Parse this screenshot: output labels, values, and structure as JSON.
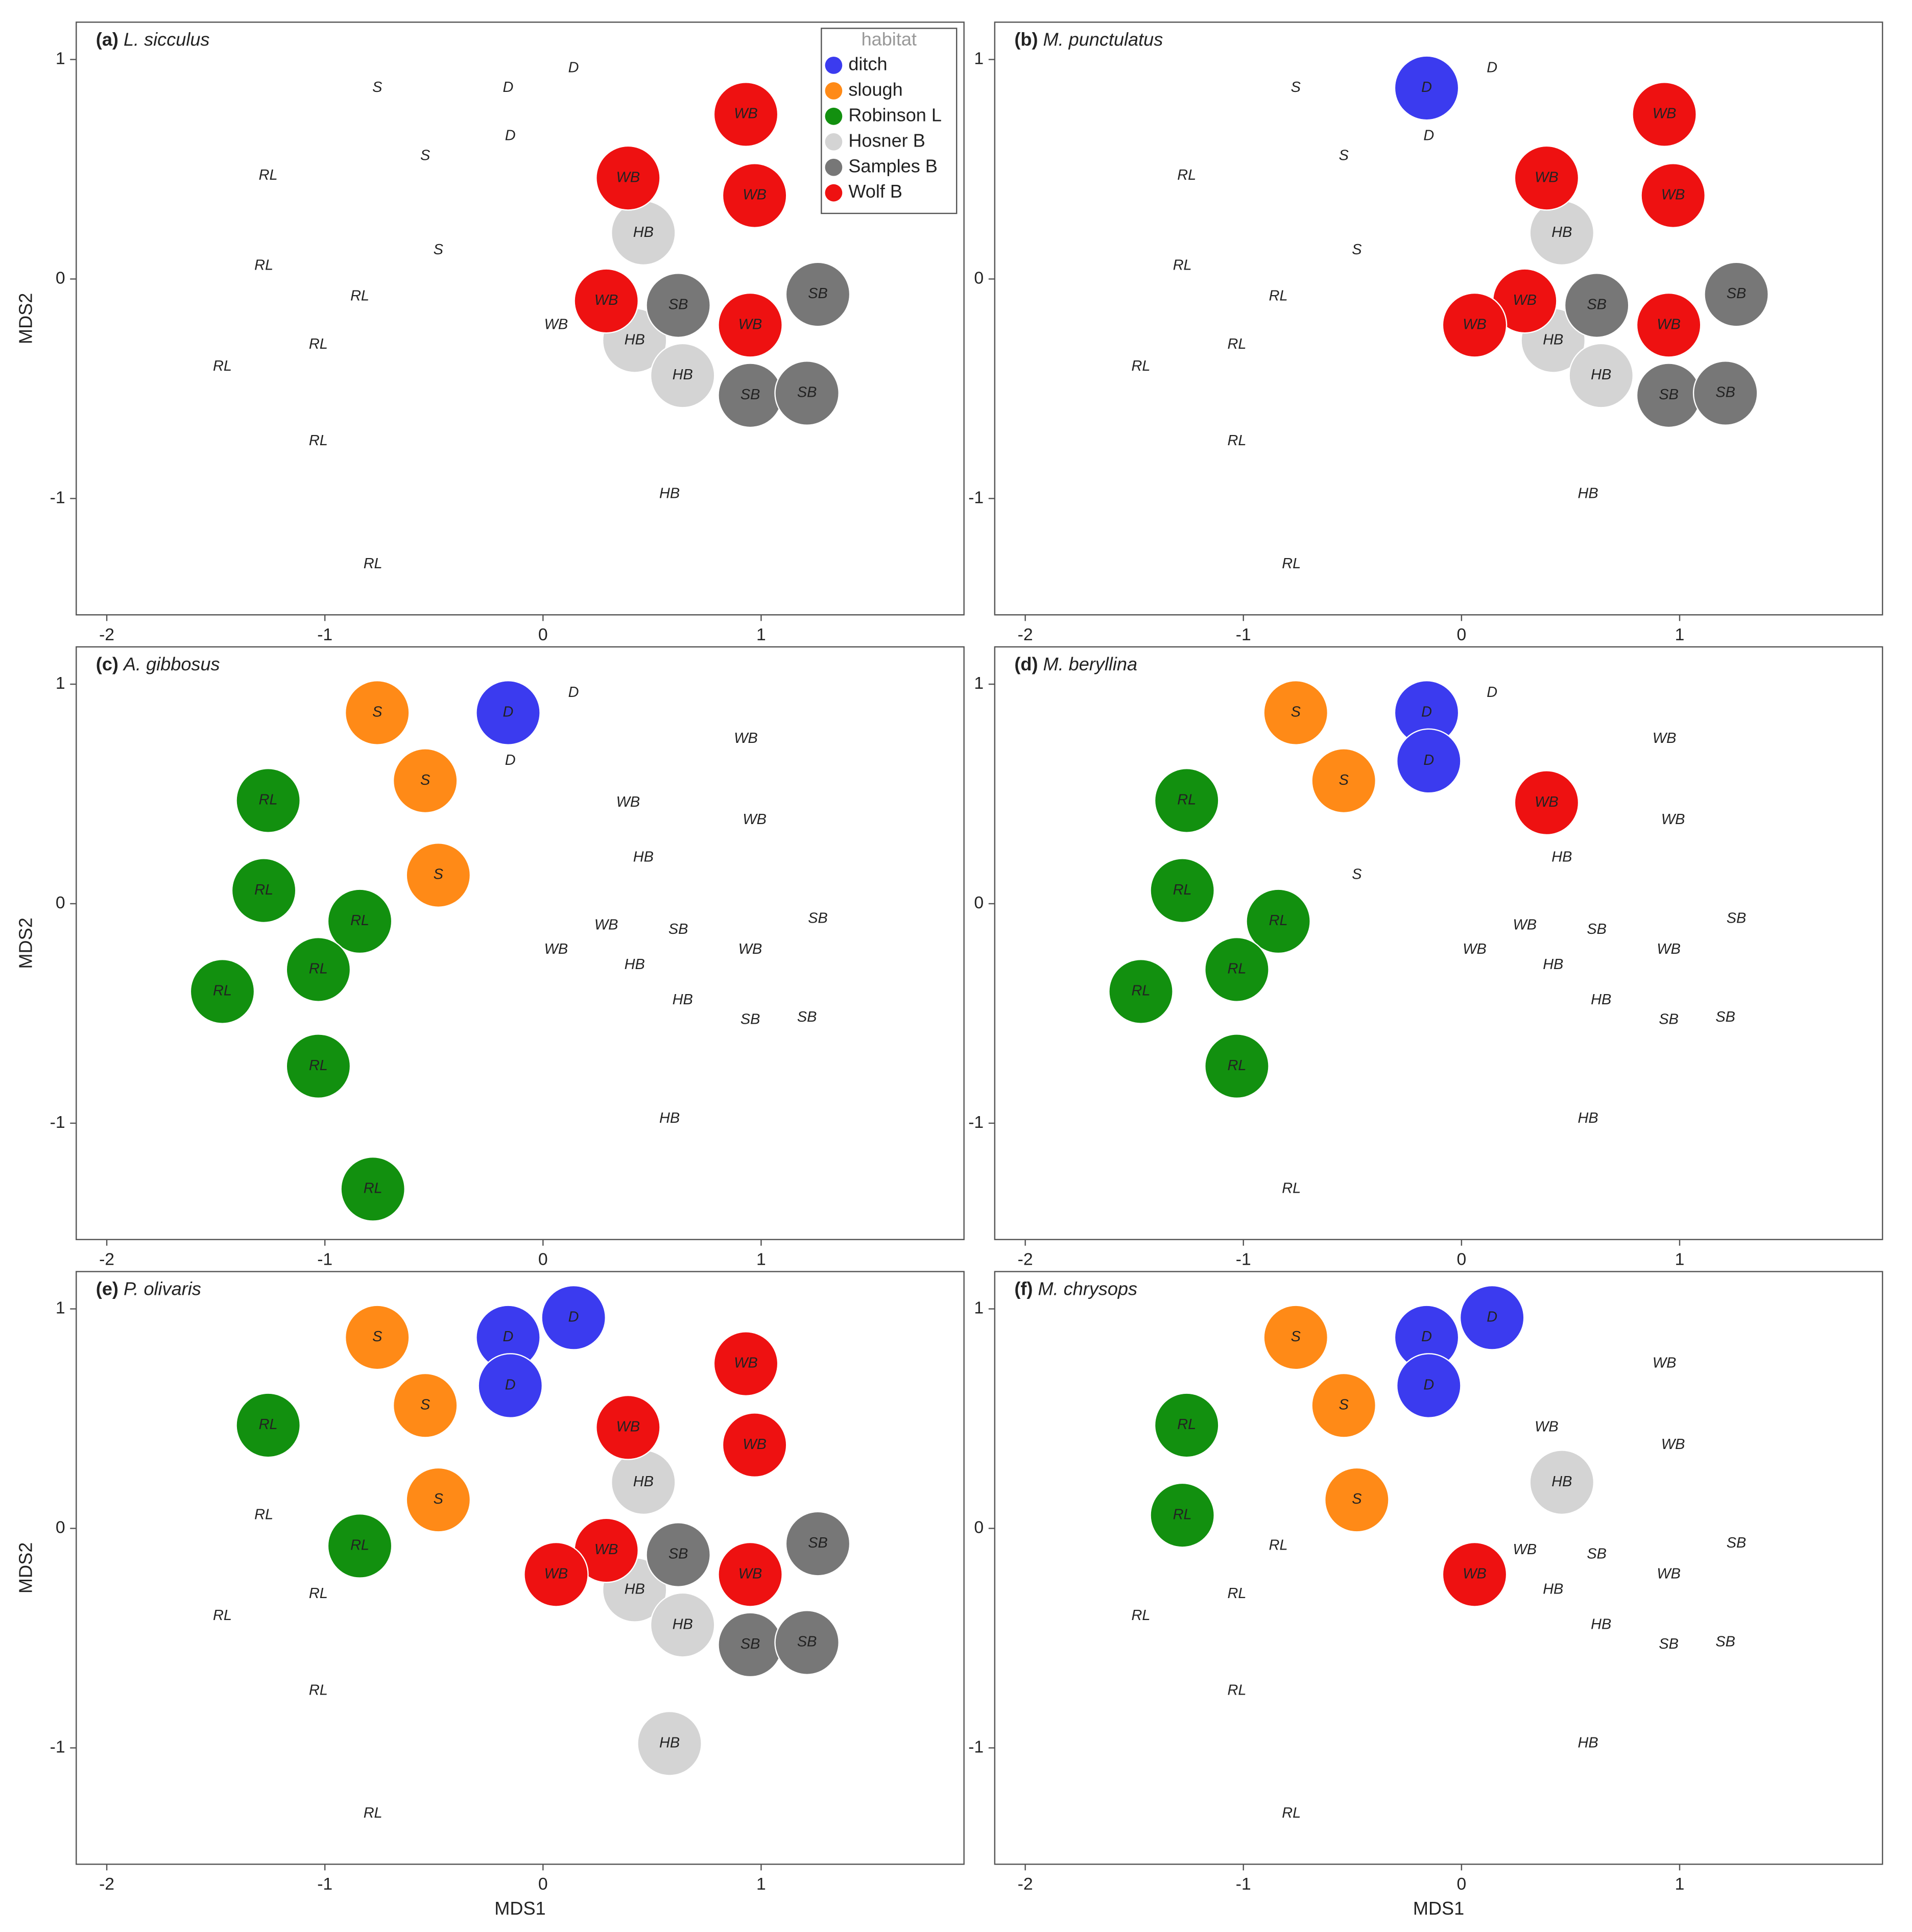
{
  "chart_data": [
    {
      "type": "scatter",
      "panel": "(a)",
      "title": "L. sicculus",
      "ylabel": "MDS2",
      "xlim": [
        -2.14,
        1.93
      ],
      "ylim": [
        -1.53,
        1.17
      ],
      "xticks": [
        -2,
        -1,
        0,
        1
      ],
      "yticks": [
        -1,
        0,
        1
      ],
      "legend": {
        "title": "habitat",
        "position": "upper right"
      },
      "series": [
        {
          "name": "ditch",
          "label": "D",
          "color": "#3b3bef",
          "x": [
            -0.16,
            0.14,
            -0.15
          ],
          "y": [
            0.87,
            0.96,
            0.65
          ],
          "filled": [
            false,
            false,
            false
          ]
        },
        {
          "name": "slough",
          "label": "S",
          "color": "#ff8a17",
          "x": [
            -0.76,
            -0.54,
            -0.48
          ],
          "y": [
            0.87,
            0.56,
            0.13
          ],
          "filled": [
            false,
            false,
            false
          ]
        },
        {
          "name": "Robinson L",
          "label": "RL",
          "color": "#12900f",
          "x": [
            -1.26,
            -1.28,
            -0.84,
            -1.03,
            -1.47,
            -1.03,
            -0.78
          ],
          "y": [
            0.47,
            0.06,
            -0.08,
            -0.3,
            -0.4,
            -0.74,
            -1.3
          ],
          "filled": [
            false,
            false,
            false,
            false,
            false,
            false,
            false
          ]
        },
        {
          "name": "Hosner B",
          "label": "HB",
          "color": "#d4d4d4",
          "x": [
            0.46,
            0.42,
            0.64,
            0.58
          ],
          "y": [
            0.21,
            -0.28,
            -0.44,
            -0.98
          ],
          "filled": [
            true,
            true,
            true,
            false
          ]
        },
        {
          "name": "Samples B",
          "label": "SB",
          "color": "#777777",
          "x": [
            0.62,
            1.26,
            0.95,
            1.21
          ],
          "y": [
            -0.12,
            -0.07,
            -0.53,
            -0.52
          ],
          "filled": [
            true,
            true,
            true,
            true
          ]
        },
        {
          "name": "Wolf B",
          "label": "WB",
          "color": "#ee1111",
          "x": [
            0.93,
            0.39,
            0.97,
            0.29,
            0.95,
            0.06
          ],
          "y": [
            0.75,
            0.46,
            0.38,
            -0.1,
            -0.21,
            -0.21
          ],
          "filled": [
            true,
            true,
            true,
            true,
            true,
            false
          ]
        }
      ]
    },
    {
      "type": "scatter",
      "panel": "(b)",
      "title": "M. punctulatus",
      "xlim": [
        -2.14,
        1.93
      ],
      "ylim": [
        -1.53,
        1.17
      ],
      "xticks": [
        -2,
        -1,
        0,
        1
      ],
      "yticks": [
        -1,
        0,
        1
      ],
      "series": [
        {
          "label": "D",
          "color": "#3b3bef",
          "x": [
            -0.16,
            0.14,
            -0.15
          ],
          "y": [
            0.87,
            0.96,
            0.65
          ],
          "filled": [
            true,
            false,
            false
          ]
        },
        {
          "label": "S",
          "color": "#ff8a17",
          "x": [
            -0.76,
            -0.54,
            -0.48
          ],
          "y": [
            0.87,
            0.56,
            0.13
          ],
          "filled": [
            false,
            false,
            false
          ]
        },
        {
          "label": "RL",
          "color": "#12900f",
          "x": [
            -1.26,
            -1.28,
            -0.84,
            -1.03,
            -1.47,
            -1.03,
            -0.78
          ],
          "y": [
            0.47,
            0.06,
            -0.08,
            -0.3,
            -0.4,
            -0.74,
            -1.3
          ],
          "filled": [
            false,
            false,
            false,
            false,
            false,
            false,
            false
          ]
        },
        {
          "label": "HB",
          "color": "#d4d4d4",
          "x": [
            0.46,
            0.42,
            0.64,
            0.58
          ],
          "y": [
            0.21,
            -0.28,
            -0.44,
            -0.98
          ],
          "filled": [
            true,
            true,
            true,
            false
          ]
        },
        {
          "label": "SB",
          "color": "#777777",
          "x": [
            0.62,
            1.26,
            0.95,
            1.21
          ],
          "y": [
            -0.12,
            -0.07,
            -0.53,
            -0.52
          ],
          "filled": [
            true,
            true,
            true,
            true
          ]
        },
        {
          "label": "WB",
          "color": "#ee1111",
          "x": [
            0.93,
            0.39,
            0.97,
            0.29,
            0.95,
            0.06
          ],
          "y": [
            0.75,
            0.46,
            0.38,
            -0.1,
            -0.21,
            -0.21
          ],
          "filled": [
            true,
            true,
            true,
            true,
            true,
            true
          ]
        }
      ]
    },
    {
      "type": "scatter",
      "panel": "(c)",
      "title": "A. gibbosus",
      "ylabel": "MDS2",
      "xlim": [
        -2.14,
        1.93
      ],
      "ylim": [
        -1.53,
        1.17
      ],
      "xticks": [
        -2,
        -1,
        0,
        1
      ],
      "yticks": [
        -1,
        0,
        1
      ],
      "series": [
        {
          "label": "D",
          "color": "#3b3bef",
          "x": [
            -0.16,
            0.14,
            -0.15
          ],
          "y": [
            0.87,
            0.96,
            0.65
          ],
          "filled": [
            true,
            false,
            false
          ]
        },
        {
          "label": "S",
          "color": "#ff8a17",
          "x": [
            -0.76,
            -0.54,
            -0.48
          ],
          "y": [
            0.87,
            0.56,
            0.13
          ],
          "filled": [
            true,
            true,
            true
          ]
        },
        {
          "label": "RL",
          "color": "#12900f",
          "x": [
            -1.26,
            -1.28,
            -0.84,
            -1.03,
            -1.47,
            -1.03,
            -0.78
          ],
          "y": [
            0.47,
            0.06,
            -0.08,
            -0.3,
            -0.4,
            -0.74,
            -1.3
          ],
          "filled": [
            true,
            true,
            true,
            true,
            true,
            true,
            true
          ]
        },
        {
          "label": "HB",
          "color": "#d4d4d4",
          "x": [
            0.46,
            0.42,
            0.64,
            0.58
          ],
          "y": [
            0.21,
            -0.28,
            -0.44,
            -0.98
          ],
          "filled": [
            false,
            false,
            false,
            false
          ]
        },
        {
          "label": "SB",
          "color": "#777777",
          "x": [
            0.62,
            1.26,
            0.95,
            1.21
          ],
          "y": [
            -0.12,
            -0.07,
            -0.53,
            -0.52
          ],
          "filled": [
            false,
            false,
            false,
            false
          ]
        },
        {
          "label": "WB",
          "color": "#ee1111",
          "x": [
            0.93,
            0.39,
            0.97,
            0.29,
            0.95,
            0.06
          ],
          "y": [
            0.75,
            0.46,
            0.38,
            -0.1,
            -0.21,
            -0.21
          ],
          "filled": [
            false,
            false,
            false,
            false,
            false,
            false
          ]
        }
      ]
    },
    {
      "type": "scatter",
      "panel": "(d)",
      "title": "M. beryllina",
      "xlim": [
        -2.14,
        1.93
      ],
      "ylim": [
        -1.53,
        1.17
      ],
      "xticks": [
        -2,
        -1,
        0,
        1
      ],
      "yticks": [
        -1,
        0,
        1
      ],
      "series": [
        {
          "label": "D",
          "color": "#3b3bef",
          "x": [
            -0.16,
            0.14,
            -0.15
          ],
          "y": [
            0.87,
            0.96,
            0.65
          ],
          "filled": [
            true,
            false,
            true
          ]
        },
        {
          "label": "S",
          "color": "#ff8a17",
          "x": [
            -0.76,
            -0.54,
            -0.48
          ],
          "y": [
            0.87,
            0.56,
            0.13
          ],
          "filled": [
            true,
            true,
            false
          ]
        },
        {
          "label": "RL",
          "color": "#12900f",
          "x": [
            -1.26,
            -1.28,
            -0.84,
            -1.03,
            -1.47,
            -1.03,
            -0.78
          ],
          "y": [
            0.47,
            0.06,
            -0.08,
            -0.3,
            -0.4,
            -0.74,
            -1.3
          ],
          "filled": [
            true,
            true,
            true,
            true,
            true,
            true,
            false
          ]
        },
        {
          "label": "HB",
          "color": "#d4d4d4",
          "x": [
            0.46,
            0.42,
            0.64,
            0.58
          ],
          "y": [
            0.21,
            -0.28,
            -0.44,
            -0.98
          ],
          "filled": [
            false,
            false,
            false,
            false
          ]
        },
        {
          "label": "SB",
          "color": "#777777",
          "x": [
            0.62,
            1.26,
            0.95,
            1.21
          ],
          "y": [
            -0.12,
            -0.07,
            -0.53,
            -0.52
          ],
          "filled": [
            false,
            false,
            false,
            false
          ]
        },
        {
          "label": "WB",
          "color": "#ee1111",
          "x": [
            0.93,
            0.39,
            0.97,
            0.29,
            0.95,
            0.06
          ],
          "y": [
            0.75,
            0.46,
            0.38,
            -0.1,
            -0.21,
            -0.21
          ],
          "filled": [
            false,
            true,
            false,
            false,
            false,
            false
          ]
        }
      ]
    },
    {
      "type": "scatter",
      "panel": "(e)",
      "title": "P. olivaris",
      "ylabel": "MDS2",
      "xlabel": "MDS1",
      "xlim": [
        -2.14,
        1.93
      ],
      "ylim": [
        -1.53,
        1.17
      ],
      "xticks": [
        -2,
        -1,
        0,
        1
      ],
      "yticks": [
        -1,
        0,
        1
      ],
      "series": [
        {
          "label": "D",
          "color": "#3b3bef",
          "x": [
            -0.16,
            0.14,
            -0.15
          ],
          "y": [
            0.87,
            0.96,
            0.65
          ],
          "filled": [
            true,
            true,
            true
          ]
        },
        {
          "label": "S",
          "color": "#ff8a17",
          "x": [
            -0.76,
            -0.54,
            -0.48
          ],
          "y": [
            0.87,
            0.56,
            0.13
          ],
          "filled": [
            true,
            true,
            true
          ]
        },
        {
          "label": "RL",
          "color": "#12900f",
          "x": [
            -1.26,
            -1.28,
            -0.84,
            -1.03,
            -1.47,
            -1.03,
            -0.78
          ],
          "y": [
            0.47,
            0.06,
            -0.08,
            -0.3,
            -0.4,
            -0.74,
            -1.3
          ],
          "filled": [
            true,
            false,
            true,
            false,
            false,
            false,
            false
          ]
        },
        {
          "label": "HB",
          "color": "#d4d4d4",
          "x": [
            0.46,
            0.42,
            0.64,
            0.58
          ],
          "y": [
            0.21,
            -0.28,
            -0.44,
            -0.98
          ],
          "filled": [
            true,
            true,
            true,
            true
          ]
        },
        {
          "label": "SB",
          "color": "#777777",
          "x": [
            0.62,
            1.26,
            0.95,
            1.21
          ],
          "y": [
            -0.12,
            -0.07,
            -0.53,
            -0.52
          ],
          "filled": [
            true,
            true,
            true,
            true
          ]
        },
        {
          "label": "WB",
          "color": "#ee1111",
          "x": [
            0.93,
            0.39,
            0.97,
            0.29,
            0.95,
            0.06
          ],
          "y": [
            0.75,
            0.46,
            0.38,
            -0.1,
            -0.21,
            -0.21
          ],
          "filled": [
            true,
            true,
            true,
            true,
            true,
            true
          ]
        }
      ]
    },
    {
      "type": "scatter",
      "panel": "(f)",
      "title": "M. chrysops",
      "xlabel": "MDS1",
      "xlim": [
        -2.14,
        1.93
      ],
      "ylim": [
        -1.53,
        1.17
      ],
      "xticks": [
        -2,
        -1,
        0,
        1
      ],
      "yticks": [
        -1,
        0,
        1
      ],
      "series": [
        {
          "label": "D",
          "color": "#3b3bef",
          "x": [
            -0.16,
            0.14,
            -0.15
          ],
          "y": [
            0.87,
            0.96,
            0.65
          ],
          "filled": [
            true,
            true,
            true
          ]
        },
        {
          "label": "S",
          "color": "#ff8a17",
          "x": [
            -0.76,
            -0.54,
            -0.48
          ],
          "y": [
            0.87,
            0.56,
            0.13
          ],
          "filled": [
            true,
            true,
            true
          ]
        },
        {
          "label": "RL",
          "color": "#12900f",
          "x": [
            -1.26,
            -1.28,
            -0.84,
            -1.03,
            -1.47,
            -1.03,
            -0.78
          ],
          "y": [
            0.47,
            0.06,
            -0.08,
            -0.3,
            -0.4,
            -0.74,
            -1.3
          ],
          "filled": [
            true,
            true,
            false,
            false,
            false,
            false,
            false
          ]
        },
        {
          "label": "HB",
          "color": "#d4d4d4",
          "x": [
            0.46,
            0.42,
            0.64,
            0.58
          ],
          "y": [
            0.21,
            -0.28,
            -0.44,
            -0.98
          ],
          "filled": [
            true,
            false,
            false,
            false
          ]
        },
        {
          "label": "SB",
          "color": "#777777",
          "x": [
            0.62,
            1.26,
            0.95,
            1.21
          ],
          "y": [
            -0.12,
            -0.07,
            -0.53,
            -0.52
          ],
          "filled": [
            false,
            false,
            false,
            false
          ]
        },
        {
          "label": "WB",
          "color": "#ee1111",
          "x": [
            0.93,
            0.39,
            0.97,
            0.29,
            0.95,
            0.06
          ],
          "y": [
            0.75,
            0.46,
            0.38,
            -0.1,
            -0.21,
            -0.21
          ],
          "filled": [
            false,
            false,
            false,
            false,
            false,
            true
          ]
        }
      ]
    }
  ]
}
